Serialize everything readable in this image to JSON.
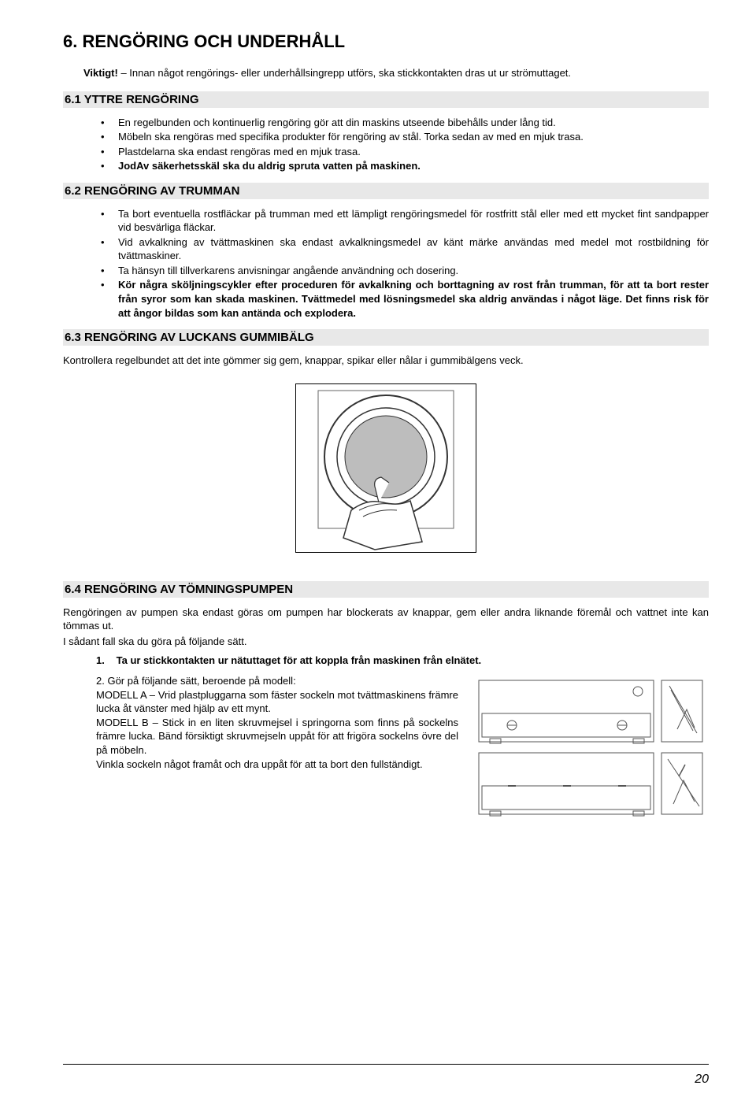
{
  "title": "6. RENGÖRING OCH UNDERHÅLL",
  "intro_prefix": "Viktigt!",
  "intro_rest": " – Innan något rengörings- eller underhållsingrepp utförs, ska stickkontakten dras ut ur strömuttaget.",
  "s61": {
    "heading": "6.1 YTTRE RENGÖRING",
    "items": [
      "En regelbunden och kontinuerlig rengöring gör att din maskins utseende bibehålls under lång tid.",
      "Möbeln ska rengöras med specifika produkter för rengöring av stål. Torka sedan av med en mjuk trasa.",
      "Plastdelarna ska endast rengöras med en mjuk trasa.",
      "JodAv säkerhetsskäl ska du aldrig spruta vatten på maskinen."
    ]
  },
  "s62": {
    "heading": "6.2 RENGÖRING AV TRUMMAN",
    "items": [
      {
        "text": "Ta bort eventuella rostfläckar på trumman med ett lämpligt rengöringsmedel för rostfritt stål eller med ett mycket fint sandpapper vid besvärliga fläckar.",
        "bold": false
      },
      {
        "text": "Vid avkalkning av tvättmaskinen ska endast avkalkningsmedel av känt märke användas med medel mot rostbildning för tvättmaskiner.",
        "bold": false
      },
      {
        "text": "Ta hänsyn till tillverkarens anvisningar angående användning och dosering.",
        "bold": false
      },
      {
        "text": "Kör några sköljningscykler efter proceduren för avkalkning och borttagning av rost från trumman, för att ta bort rester från syror som kan skada maskinen. Tvättmedel med lösningsmedel ska aldrig användas i något läge. Det finns risk för att ångor bildas som kan antända och explodera.",
        "bold": true
      }
    ]
  },
  "s63": {
    "heading": "6.3 RENGÖRING AV LUCKANS GUMMIBÄLG",
    "body": "Kontrollera regelbundet att det inte gömmer sig gem, knappar, spikar eller nålar i gummibälgens veck."
  },
  "s64": {
    "heading": "6.4 RENGÖRING AV TÖMNINGSPUMPEN",
    "body1": "Rengöringen av pumpen ska endast göras om pumpen har blockerats av knappar, gem eller andra liknande föremål och vattnet inte kan tömmas ut.",
    "body2": "I sådant fall ska du göra på följande sätt.",
    "step1_num": "1.",
    "step1_text": "Ta ur stickkontakten ur nätuttaget för att koppla från maskinen från elnätet.",
    "step2_num": "2.",
    "step2_text": "Gör på följande sätt, beroende på modell:\nMODELL A – Vrid plastpluggarna som fäster sockeln mot tvättmaskinens främre lucka åt vänster med hjälp av ett mynt.\nMODELL B – Stick in en liten skruvmejsel i springorna som finns på sockelns främre lucka. Bänd försiktigt skruvmejseln uppåt för att frigöra sockelns övre del på möbeln.\nVinkla sockeln något framåt och dra uppåt för att ta bort den fullständigt."
  },
  "page_number": "20"
}
